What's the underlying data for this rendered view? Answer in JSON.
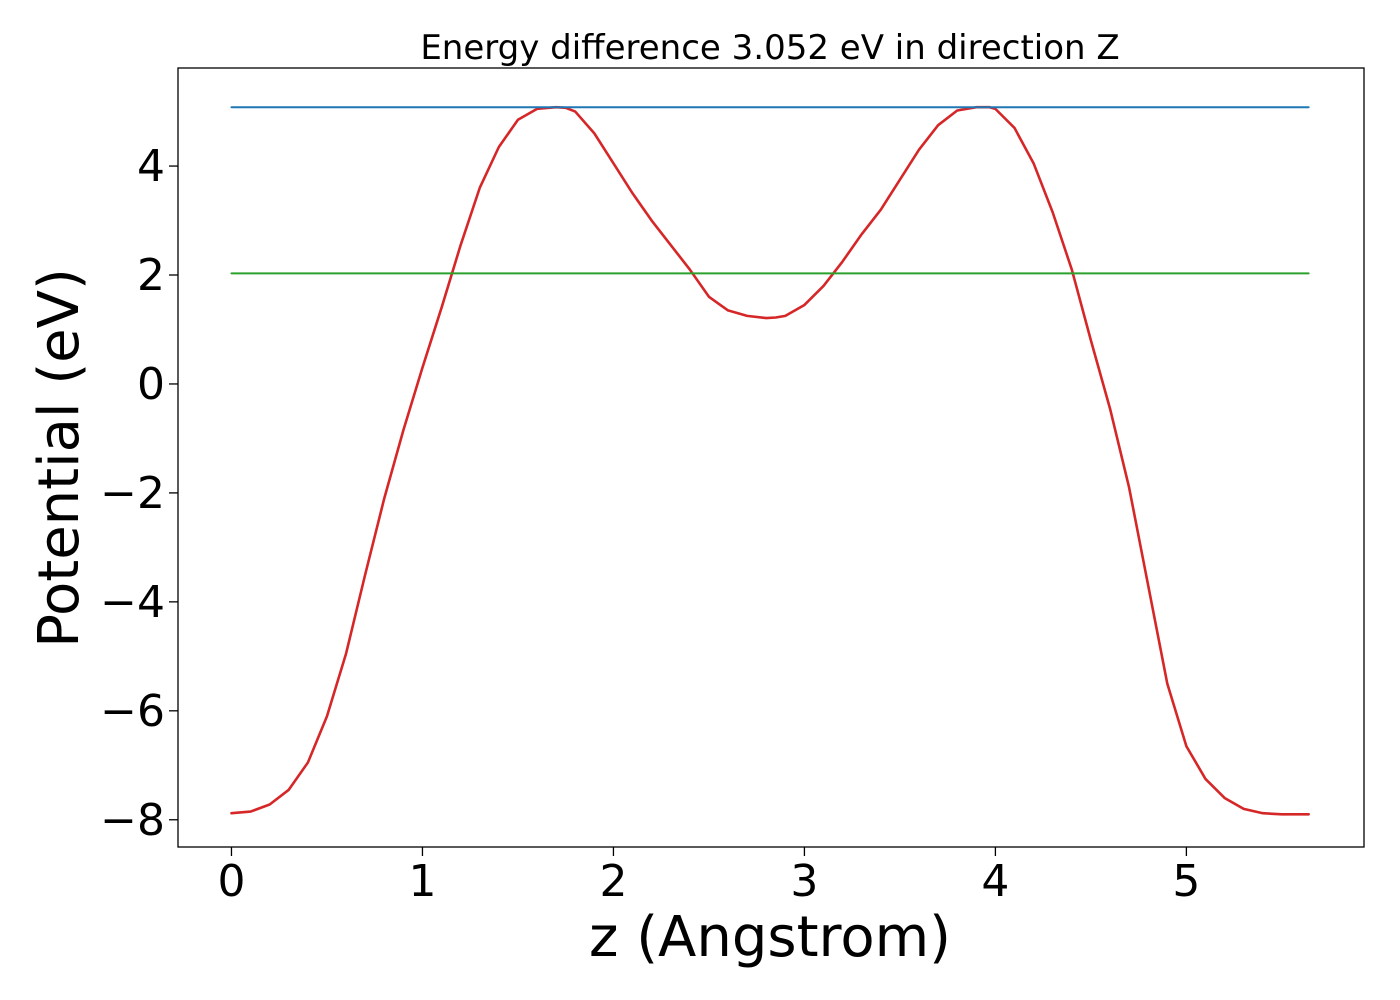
{
  "chart_data": {
    "type": "line",
    "title": "Energy difference 3.052 eV in direction Z",
    "xlabel": "z (Angstrom)",
    "ylabel": "Potential (eV)",
    "xlim": [
      -0.28,
      5.93
    ],
    "ylim": [
      -8.5,
      5.8
    ],
    "xticks": [
      0,
      1,
      2,
      3,
      4,
      5
    ],
    "xtick_labels": [
      "0",
      "1",
      "2",
      "3",
      "4",
      "5"
    ],
    "yticks": [
      -8,
      -6,
      -4,
      -2,
      0,
      2,
      4
    ],
    "ytick_labels": [
      "−8",
      "−6",
      "−4",
      "−2",
      "0",
      "2",
      "4"
    ],
    "grid": false,
    "legend": "none",
    "series": [
      {
        "color": "#d62728",
        "x": [
          0.0,
          0.1,
          0.2,
          0.3,
          0.4,
          0.5,
          0.6,
          0.7,
          0.8,
          0.9,
          1.0,
          1.1,
          1.2,
          1.3,
          1.4,
          1.5,
          1.6,
          1.7,
          1.75,
          1.8,
          1.9,
          2.0,
          2.1,
          2.2,
          2.3,
          2.4,
          2.5,
          2.6,
          2.7,
          2.8,
          2.85,
          2.9,
          3.0,
          3.1,
          3.2,
          3.3,
          3.4,
          3.5,
          3.6,
          3.7,
          3.8,
          3.9,
          3.97,
          4.0,
          4.1,
          4.2,
          4.3,
          4.4,
          4.5,
          4.6,
          4.7,
          4.8,
          4.9,
          5.0,
          5.1,
          5.2,
          5.3,
          5.4,
          5.5,
          5.64
        ],
        "y": [
          -7.88,
          -7.85,
          -7.72,
          -7.45,
          -6.95,
          -6.1,
          -4.95,
          -3.5,
          -2.1,
          -0.85,
          0.3,
          1.4,
          2.55,
          3.6,
          4.35,
          4.85,
          5.05,
          5.08,
          5.07,
          5.0,
          4.6,
          4.05,
          3.5,
          3.0,
          2.55,
          2.1,
          1.6,
          1.35,
          1.25,
          1.21,
          1.22,
          1.25,
          1.45,
          1.8,
          2.25,
          2.75,
          3.2,
          3.75,
          4.3,
          4.75,
          5.02,
          5.08,
          5.08,
          5.05,
          4.7,
          4.05,
          3.15,
          2.1,
          0.8,
          -0.45,
          -1.9,
          -3.7,
          -5.5,
          -6.65,
          -7.25,
          -7.6,
          -7.8,
          -7.88,
          -7.9,
          -7.9
        ]
      },
      {
        "color": "#1f77b4",
        "x": [
          0.0,
          5.64
        ],
        "y": [
          5.08,
          5.08
        ]
      },
      {
        "color": "#2ca02c",
        "x": [
          0.0,
          5.64
        ],
        "y": [
          2.03,
          2.03
        ]
      }
    ]
  }
}
